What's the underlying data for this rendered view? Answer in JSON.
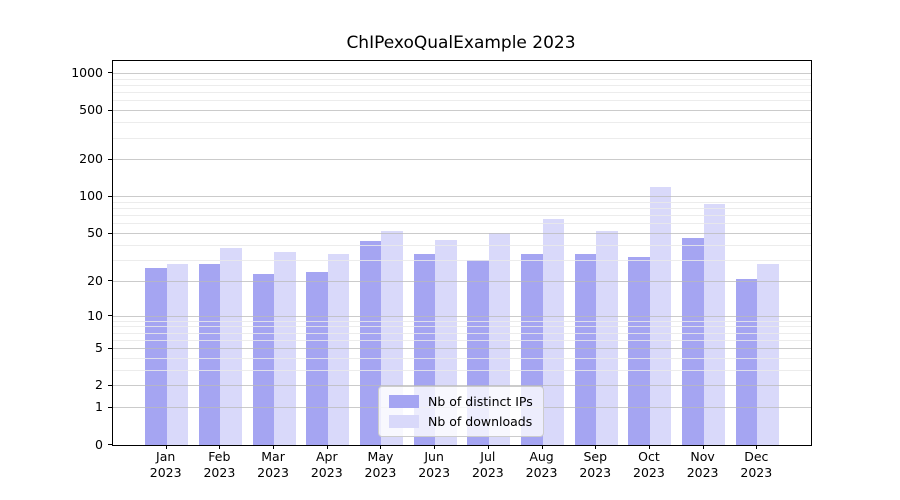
{
  "chart_data": {
    "type": "bar",
    "title": "ChIPexoQualExample 2023",
    "categories": [
      "Jan",
      "Feb",
      "Mar",
      "Apr",
      "May",
      "Jun",
      "Jul",
      "Aug",
      "Sep",
      "Oct",
      "Nov",
      "Dec"
    ],
    "x_tick_second_line": "2023",
    "series": [
      {
        "name": "Nb of distinct IPs",
        "key": "distinct-ips",
        "color": "#a5a5f2",
        "values": [
          26,
          28,
          23,
          24,
          43,
          34,
          30,
          34,
          34,
          32,
          46,
          21
        ]
      },
      {
        "name": "Nb of downloads",
        "key": "downloads",
        "color": "#d9d9fa",
        "values": [
          28,
          38,
          35,
          34,
          52,
          44,
          51,
          66,
          52,
          120,
          88,
          28
        ]
      }
    ],
    "scale": "log1p",
    "ylim": [
      0,
      1260
    ],
    "y_ticks": [
      1000,
      500,
      200,
      100,
      50,
      20,
      10,
      5,
      2,
      1,
      0
    ],
    "y_minor_ticks": [
      3,
      4,
      6,
      7,
      8,
      9,
      30,
      40,
      60,
      70,
      80,
      90,
      300,
      400,
      600,
      700,
      800,
      900
    ],
    "grid": true,
    "legend_position": "lower center inside",
    "colors": {
      "axis": "#000000",
      "major_grid": "#b9b9b9",
      "minor_grid": "#e9e9e9",
      "background": "#ffffff"
    }
  }
}
